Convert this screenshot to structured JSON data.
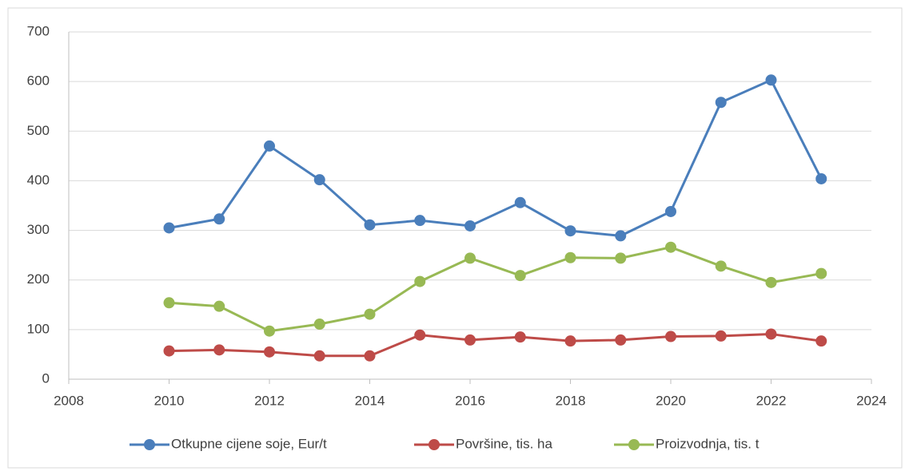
{
  "chart_data": {
    "type": "line",
    "x": [
      2010,
      2011,
      2012,
      2013,
      2014,
      2015,
      2016,
      2017,
      2018,
      2019,
      2020,
      2021,
      2022,
      2023
    ],
    "series": [
      {
        "name": "Otkupne cijene soje, Eur/t",
        "color": "#4a7ebb",
        "values": [
          305,
          323,
          470,
          402,
          311,
          320,
          309,
          356,
          299,
          289,
          338,
          558,
          603,
          404
        ]
      },
      {
        "name": "Površine, tis. ha",
        "color": "#be4b48",
        "values": [
          57,
          59,
          55,
          47,
          47,
          89,
          79,
          85,
          77,
          79,
          86,
          87,
          91,
          77
        ]
      },
      {
        "name": "Proizvodnja, tis. t",
        "color": "#98b954",
        "values": [
          154,
          147,
          97,
          111,
          131,
          197,
          244,
          209,
          245,
          244,
          266,
          228,
          195,
          213
        ]
      }
    ],
    "xlim": [
      2008,
      2024
    ],
    "xticks": [
      2008,
      2010,
      2012,
      2014,
      2016,
      2018,
      2020,
      2022,
      2024
    ],
    "ylim": [
      0,
      700
    ],
    "yticks": [
      0,
      100,
      200,
      300,
      400,
      500,
      600,
      700
    ],
    "grid": true,
    "legend": "bottom"
  }
}
